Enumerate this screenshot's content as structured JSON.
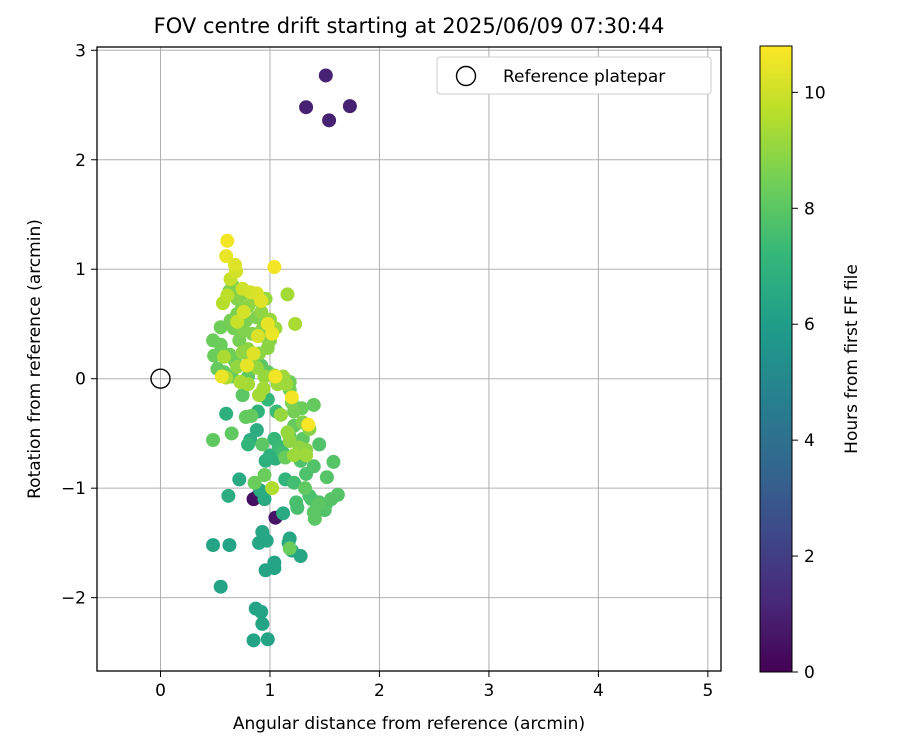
{
  "chart_data": {
    "type": "scatter",
    "title": "FOV centre drift starting at 2025/06/09 07:30:44",
    "xlabel": "Angular distance from reference (arcmin)",
    "ylabel": "Rotation from reference (arcmin)",
    "xlim": [
      -0.58,
      5.12
    ],
    "ylim": [
      -2.67,
      3.03
    ],
    "xticks": [
      0,
      1,
      2,
      3,
      4,
      5
    ],
    "yticks": [
      -2,
      -1,
      0,
      1,
      2,
      3
    ],
    "xtick_labels": [
      "0",
      "1",
      "2",
      "3",
      "4",
      "5"
    ],
    "ytick_labels": [
      "−2",
      "−1",
      "0",
      "1",
      "2",
      "3"
    ],
    "grid": true,
    "legend": {
      "placement": "top-right",
      "entries": [
        "Reference platepar"
      ]
    },
    "reference_point": {
      "name": "Reference platepar",
      "x": 0.0,
      "y": 0.0
    },
    "colorbar": {
      "label": "Hours from first FF file",
      "range": [
        0,
        10.8
      ],
      "ticks": [
        0,
        2,
        4,
        6,
        8,
        10
      ],
      "tick_labels": [
        "0",
        "2",
        "4",
        "6",
        "8",
        "10"
      ],
      "colormap": "viridis"
    },
    "points": [
      {
        "x": 1.51,
        "y": 2.77,
        "c": 1.0
      },
      {
        "x": 1.33,
        "y": 2.48,
        "c": 1.0
      },
      {
        "x": 1.73,
        "y": 2.49,
        "c": 1.0
      },
      {
        "x": 1.54,
        "y": 2.36,
        "c": 1.0
      },
      {
        "x": 0.85,
        "y": -1.1,
        "c": 0.4
      },
      {
        "x": 0.88,
        "y": -1.08,
        "c": 0.5
      },
      {
        "x": 1.05,
        "y": -1.27,
        "c": 0.6
      },
      {
        "x": 0.48,
        "y": -1.52,
        "c": 6.3
      },
      {
        "x": 0.63,
        "y": -1.52,
        "c": 6.3
      },
      {
        "x": 0.55,
        "y": -1.9,
        "c": 6.3
      },
      {
        "x": 0.87,
        "y": -2.1,
        "c": 6.3
      },
      {
        "x": 0.92,
        "y": -2.13,
        "c": 6.3
      },
      {
        "x": 0.93,
        "y": -2.24,
        "c": 6.3
      },
      {
        "x": 0.85,
        "y": -2.39,
        "c": 6.3
      },
      {
        "x": 0.98,
        "y": -2.38,
        "c": 6.3
      },
      {
        "x": 0.96,
        "y": -1.75,
        "c": 6.3
      },
      {
        "x": 1.04,
        "y": -1.73,
        "c": 6.3
      },
      {
        "x": 1.04,
        "y": -1.68,
        "c": 6.3
      },
      {
        "x": 0.93,
        "y": -1.4,
        "c": 6.4
      },
      {
        "x": 0.9,
        "y": -1.5,
        "c": 6.4
      },
      {
        "x": 0.97,
        "y": -1.48,
        "c": 6.4
      },
      {
        "x": 0.94,
        "y": -1.45,
        "c": 6.4
      },
      {
        "x": 1.18,
        "y": -1.46,
        "c": 6.4
      },
      {
        "x": 1.2,
        "y": -1.57,
        "c": 6.4
      },
      {
        "x": 1.28,
        "y": -1.62,
        "c": 6.4
      },
      {
        "x": 1.17,
        "y": -1.5,
        "c": 6.5
      },
      {
        "x": 1.12,
        "y": -1.23,
        "c": 6.6
      },
      {
        "x": 0.72,
        "y": -0.92,
        "c": 6.6
      },
      {
        "x": 0.91,
        "y": -1.02,
        "c": 6.6
      },
      {
        "x": 0.95,
        "y": -1.1,
        "c": 6.6
      },
      {
        "x": 0.62,
        "y": -1.07,
        "c": 6.7
      },
      {
        "x": 0.82,
        "y": -0.56,
        "c": 6.7
      },
      {
        "x": 0.88,
        "y": -0.47,
        "c": 6.7
      },
      {
        "x": 0.6,
        "y": -0.32,
        "c": 6.8
      },
      {
        "x": 0.96,
        "y": -0.75,
        "c": 6.8
      },
      {
        "x": 1.05,
        "y": -0.73,
        "c": 6.8
      },
      {
        "x": 1.0,
        "y": -0.7,
        "c": 6.9
      },
      {
        "x": 1.14,
        "y": -0.92,
        "c": 7.0
      },
      {
        "x": 0.89,
        "y": -0.3,
        "c": 7.0
      },
      {
        "x": 0.8,
        "y": -0.6,
        "c": 7.1
      },
      {
        "x": 0.98,
        "y": -0.19,
        "c": 7.2
      },
      {
        "x": 1.04,
        "y": -0.55,
        "c": 7.2
      },
      {
        "x": 1.08,
        "y": -0.62,
        "c": 7.3
      },
      {
        "x": 1.06,
        "y": -0.3,
        "c": 7.4
      },
      {
        "x": 1.12,
        "y": -0.68,
        "c": 7.5
      },
      {
        "x": 1.22,
        "y": -0.95,
        "c": 7.5
      },
      {
        "x": 1.24,
        "y": -1.13,
        "c": 7.6
      },
      {
        "x": 1.25,
        "y": -1.18,
        "c": 7.6
      },
      {
        "x": 1.36,
        "y": -1.07,
        "c": 7.6
      },
      {
        "x": 1.38,
        "y": -1.1,
        "c": 7.7
      },
      {
        "x": 1.28,
        "y": -0.75,
        "c": 7.7
      },
      {
        "x": 1.33,
        "y": -0.87,
        "c": 7.7
      },
      {
        "x": 1.4,
        "y": -0.8,
        "c": 7.8
      },
      {
        "x": 1.45,
        "y": -0.6,
        "c": 7.8
      },
      {
        "x": 1.45,
        "y": -1.13,
        "c": 7.8
      },
      {
        "x": 1.5,
        "y": -1.2,
        "c": 7.8
      },
      {
        "x": 1.51,
        "y": -1.15,
        "c": 7.9
      },
      {
        "x": 1.56,
        "y": -1.1,
        "c": 7.9
      },
      {
        "x": 1.62,
        "y": -1.06,
        "c": 7.9
      },
      {
        "x": 1.58,
        "y": -0.76,
        "c": 7.9
      },
      {
        "x": 1.52,
        "y": -0.9,
        "c": 7.9
      },
      {
        "x": 1.4,
        "y": -1.22,
        "c": 8.0
      },
      {
        "x": 1.41,
        "y": -1.28,
        "c": 8.0
      },
      {
        "x": 1.44,
        "y": -1.15,
        "c": 8.0
      },
      {
        "x": 1.32,
        "y": -1.0,
        "c": 8.1
      },
      {
        "x": 1.3,
        "y": -0.55,
        "c": 8.1
      },
      {
        "x": 1.22,
        "y": -0.43,
        "c": 8.2
      },
      {
        "x": 1.4,
        "y": -0.24,
        "c": 8.2
      },
      {
        "x": 1.29,
        "y": -0.27,
        "c": 8.3
      },
      {
        "x": 1.18,
        "y": -0.53,
        "c": 8.3
      },
      {
        "x": 1.14,
        "y": -0.72,
        "c": 8.3
      },
      {
        "x": 1.18,
        "y": -1.55,
        "c": 8.3
      },
      {
        "x": 0.75,
        "y": -0.15,
        "c": 8.0
      },
      {
        "x": 0.93,
        "y": -0.6,
        "c": 8.0
      },
      {
        "x": 0.48,
        "y": -0.56,
        "c": 8.1
      },
      {
        "x": 0.65,
        "y": -0.5,
        "c": 8.1
      },
      {
        "x": 0.78,
        "y": -0.35,
        "c": 8.2
      },
      {
        "x": 0.83,
        "y": -0.34,
        "c": 8.2
      },
      {
        "x": 0.86,
        "y": -0.95,
        "c": 8.3
      },
      {
        "x": 0.95,
        "y": -0.88,
        "c": 8.3
      },
      {
        "x": 1.02,
        "y": -1.0,
        "c": 9.5
      },
      {
        "x": 1.18,
        "y": -0.03,
        "c": 8.4
      },
      {
        "x": 1.18,
        "y": -0.1,
        "c": 8.4
      },
      {
        "x": 1.22,
        "y": -0.3,
        "c": 8.5
      },
      {
        "x": 1.2,
        "y": -0.22,
        "c": 8.6
      },
      {
        "x": 1.3,
        "y": -0.4,
        "c": 8.7
      },
      {
        "x": 1.36,
        "y": -0.46,
        "c": 8.8
      },
      {
        "x": 1.33,
        "y": -0.65,
        "c": 8.9
      },
      {
        "x": 1.27,
        "y": -0.63,
        "c": 9.0
      },
      {
        "x": 1.18,
        "y": -0.57,
        "c": 9.0
      },
      {
        "x": 1.16,
        "y": -0.49,
        "c": 9.1
      },
      {
        "x": 1.1,
        "y": -0.33,
        "c": 9.1
      },
      {
        "x": 1.33,
        "y": -0.7,
        "c": 9.2
      },
      {
        "x": 1.22,
        "y": -0.7,
        "c": 9.2
      },
      {
        "x": 0.92,
        "y": 0.12,
        "c": 8.0
      },
      {
        "x": 0.98,
        "y": 0.06,
        "c": 8.1
      },
      {
        "x": 0.8,
        "y": 0.02,
        "c": 8.1
      },
      {
        "x": 0.65,
        "y": 0.02,
        "c": 8.2
      },
      {
        "x": 0.58,
        "y": 0.06,
        "c": 8.2
      },
      {
        "x": 0.52,
        "y": 0.09,
        "c": 8.2
      },
      {
        "x": 0.55,
        "y": 0.31,
        "c": 8.3
      },
      {
        "x": 0.49,
        "y": 0.21,
        "c": 8.3
      },
      {
        "x": 0.48,
        "y": 0.35,
        "c": 8.3
      },
      {
        "x": 0.55,
        "y": 0.47,
        "c": 8.4
      },
      {
        "x": 0.63,
        "y": 0.22,
        "c": 8.4
      },
      {
        "x": 0.68,
        "y": 0.16,
        "c": 8.4
      },
      {
        "x": 0.72,
        "y": 0.35,
        "c": 8.5
      },
      {
        "x": 0.67,
        "y": 0.46,
        "c": 8.5
      },
      {
        "x": 0.64,
        "y": 0.53,
        "c": 8.5
      },
      {
        "x": 0.7,
        "y": 0.59,
        "c": 8.6
      },
      {
        "x": 0.74,
        "y": 0.63,
        "c": 8.6
      },
      {
        "x": 0.78,
        "y": 0.53,
        "c": 8.6
      },
      {
        "x": 0.76,
        "y": 0.44,
        "c": 8.7
      },
      {
        "x": 0.84,
        "y": 0.41,
        "c": 8.7
      },
      {
        "x": 0.88,
        "y": 0.56,
        "c": 8.7
      },
      {
        "x": 0.93,
        "y": 0.45,
        "c": 8.8
      },
      {
        "x": 0.96,
        "y": 0.38,
        "c": 8.8
      },
      {
        "x": 1.0,
        "y": 0.35,
        "c": 8.8
      },
      {
        "x": 0.98,
        "y": 0.28,
        "c": 8.9
      },
      {
        "x": 0.9,
        "y": 0.23,
        "c": 8.9
      },
      {
        "x": 0.8,
        "y": 0.27,
        "c": 8.9
      },
      {
        "x": 0.75,
        "y": 0.24,
        "c": 9.0
      },
      {
        "x": 0.7,
        "y": 0.11,
        "c": 9.0
      },
      {
        "x": 0.82,
        "y": 0.18,
        "c": 9.0
      },
      {
        "x": 0.88,
        "y": 0.1,
        "c": 9.1
      },
      {
        "x": 0.95,
        "y": 0.02,
        "c": 9.1
      },
      {
        "x": 1.04,
        "y": 0.03,
        "c": 9.1
      },
      {
        "x": 1.07,
        "y": -0.05,
        "c": 9.2
      },
      {
        "x": 1.12,
        "y": 0.02,
        "c": 9.2
      },
      {
        "x": 1.15,
        "y": -0.05,
        "c": 9.2
      },
      {
        "x": 0.94,
        "y": -0.09,
        "c": 9.3
      },
      {
        "x": 0.9,
        "y": -0.15,
        "c": 9.3
      },
      {
        "x": 0.8,
        "y": -0.05,
        "c": 9.3
      },
      {
        "x": 0.73,
        "y": -0.03,
        "c": 9.4
      },
      {
        "x": 0.6,
        "y": 0.01,
        "c": 9.4
      },
      {
        "x": 0.58,
        "y": 0.2,
        "c": 9.4
      },
      {
        "x": 0.63,
        "y": 0.8,
        "c": 8.6
      },
      {
        "x": 0.66,
        "y": 0.85,
        "c": 8.7
      },
      {
        "x": 0.7,
        "y": 0.73,
        "c": 8.8
      },
      {
        "x": 0.76,
        "y": 0.78,
        "c": 8.8
      },
      {
        "x": 0.8,
        "y": 0.66,
        "c": 8.9
      },
      {
        "x": 0.86,
        "y": 0.72,
        "c": 9.0
      },
      {
        "x": 0.92,
        "y": 0.61,
        "c": 9.0
      },
      {
        "x": 0.96,
        "y": 0.73,
        "c": 9.1
      },
      {
        "x": 1.0,
        "y": 0.54,
        "c": 9.1
      },
      {
        "x": 1.05,
        "y": 0.46,
        "c": 9.2
      },
      {
        "x": 1.16,
        "y": 0.77,
        "c": 9.3
      },
      {
        "x": 1.23,
        "y": 0.5,
        "c": 9.4
      },
      {
        "x": 0.57,
        "y": 0.69,
        "c": 9.6
      },
      {
        "x": 0.61,
        "y": 0.76,
        "c": 9.7
      },
      {
        "x": 0.64,
        "y": 0.91,
        "c": 9.9
      },
      {
        "x": 0.69,
        "y": 0.98,
        "c": 10.1
      },
      {
        "x": 0.68,
        "y": 1.04,
        "c": 10.3
      },
      {
        "x": 0.6,
        "y": 1.12,
        "c": 10.5
      },
      {
        "x": 0.61,
        "y": 1.26,
        "c": 10.6
      },
      {
        "x": 1.04,
        "y": 1.02,
        "c": 10.6
      },
      {
        "x": 0.75,
        "y": 0.82,
        "c": 10.0
      },
      {
        "x": 0.82,
        "y": 0.79,
        "c": 10.1
      },
      {
        "x": 0.88,
        "y": 0.78,
        "c": 10.2
      },
      {
        "x": 0.92,
        "y": 0.71,
        "c": 10.3
      },
      {
        "x": 0.98,
        "y": 0.5,
        "c": 10.4
      },
      {
        "x": 1.02,
        "y": 0.41,
        "c": 10.5
      },
      {
        "x": 0.89,
        "y": 0.39,
        "c": 10.2
      },
      {
        "x": 0.76,
        "y": 0.61,
        "c": 10.1
      },
      {
        "x": 0.7,
        "y": 0.52,
        "c": 9.9
      },
      {
        "x": 0.85,
        "y": 0.23,
        "c": 10.3
      },
      {
        "x": 0.79,
        "y": 0.12,
        "c": 10.4
      },
      {
        "x": 0.56,
        "y": 0.02,
        "c": 10.5
      },
      {
        "x": 1.05,
        "y": 0.02,
        "c": 10.6
      },
      {
        "x": 1.2,
        "y": -0.17,
        "c": 10.6
      },
      {
        "x": 1.35,
        "y": -0.42,
        "c": 10.7
      }
    ]
  }
}
